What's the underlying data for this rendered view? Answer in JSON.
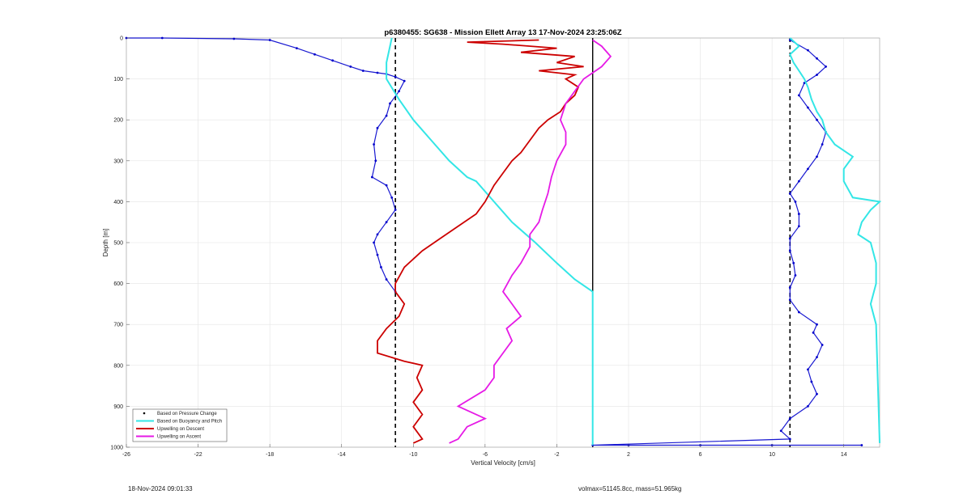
{
  "footer": {
    "timestamp": "18-Nov-2024 09:01:33",
    "mass_info": "volmax=51145.8cc, mass=51.965kg"
  },
  "chart_data": {
    "type": "line",
    "title": "p6380455: SG638 - Mission Ellett Array 13 17-Nov-2024 23:25:06Z",
    "xlabel": "Vertical Velocity [cm/s]",
    "ylabel": "Depth [m]",
    "xlim": [
      -26,
      16
    ],
    "ylim": [
      0,
      1000
    ],
    "y_reversed": true,
    "xticks": [
      -26,
      -22,
      -18,
      -14,
      -10,
      -6,
      -2,
      2,
      6,
      10,
      14
    ],
    "yticks": [
      0,
      100,
      200,
      300,
      400,
      500,
      600,
      700,
      800,
      900,
      1000
    ],
    "grid": true,
    "legend_position": "bottom-left",
    "reference_lines": [
      {
        "x": -11,
        "style": "dashed",
        "color": "#000000"
      },
      {
        "x": 0,
        "style": "solid",
        "color": "#000000"
      },
      {
        "x": 11,
        "style": "dashed",
        "color": "#000000"
      }
    ],
    "series": [
      {
        "name": "Based on Pressure Change",
        "style": "points",
        "color": "#0000cc",
        "descent": [
          [
            -26,
            0
          ],
          [
            -24,
            0
          ],
          [
            -20,
            2
          ],
          [
            -18,
            5
          ],
          [
            -16.5,
            25
          ],
          [
            -15.5,
            40
          ],
          [
            -14.5,
            55
          ],
          [
            -13.5,
            70
          ],
          [
            -12.8,
            80
          ],
          [
            -12,
            85
          ],
          [
            -11.5,
            88
          ],
          [
            -11,
            95
          ],
          [
            -10.5,
            105
          ],
          [
            -10.8,
            130
          ],
          [
            -11.3,
            160
          ],
          [
            -11.5,
            190
          ],
          [
            -12,
            220
          ],
          [
            -12.2,
            260
          ],
          [
            -12.1,
            300
          ],
          [
            -12.3,
            340
          ],
          [
            -11.5,
            360
          ],
          [
            -11.2,
            390
          ],
          [
            -11,
            420
          ],
          [
            -11.5,
            450
          ],
          [
            -12,
            480
          ],
          [
            -12.2,
            500
          ],
          [
            -12,
            530
          ],
          [
            -11.8,
            560
          ],
          [
            -11.5,
            590
          ],
          [
            -11,
            620
          ]
        ],
        "ascent": [
          [
            15,
            995
          ],
          [
            10,
            995
          ],
          [
            6,
            995
          ],
          [
            2,
            995
          ],
          [
            0,
            995
          ],
          [
            11,
            980
          ],
          [
            10.5,
            960
          ],
          [
            11,
            930
          ],
          [
            12,
            900
          ],
          [
            12.5,
            870
          ],
          [
            12.2,
            840
          ],
          [
            12,
            810
          ],
          [
            12.5,
            780
          ],
          [
            12.8,
            750
          ],
          [
            12.3,
            720
          ],
          [
            12.5,
            700
          ],
          [
            11.5,
            670
          ],
          [
            11,
            640
          ],
          [
            11,
            610
          ],
          [
            11.3,
            580
          ],
          [
            11.2,
            550
          ],
          [
            11,
            520
          ],
          [
            11,
            490
          ],
          [
            11.5,
            460
          ],
          [
            11.5,
            430
          ],
          [
            11.3,
            400
          ],
          [
            11,
            380
          ],
          [
            11.5,
            350
          ],
          [
            12,
            320
          ],
          [
            12.5,
            290
          ],
          [
            12.8,
            260
          ],
          [
            13,
            230
          ],
          [
            12.5,
            200
          ],
          [
            12,
            170
          ],
          [
            11.5,
            140
          ],
          [
            11.8,
            110
          ],
          [
            12.5,
            90
          ],
          [
            13,
            70
          ],
          [
            12.5,
            50
          ],
          [
            12,
            30
          ],
          [
            11,
            5
          ]
        ]
      },
      {
        "name": "Based on Buoyancy and Pitch",
        "style": "line",
        "color": "#33e6e6",
        "descent": [
          [
            -11.2,
            0
          ],
          [
            -11.5,
            60
          ],
          [
            -11.5,
            100
          ],
          [
            -10.8,
            150
          ],
          [
            -10,
            200
          ],
          [
            -9,
            250
          ],
          [
            -8,
            300
          ],
          [
            -7,
            340
          ],
          [
            -6.5,
            350
          ],
          [
            -5.5,
            400
          ],
          [
            -4.5,
            450
          ],
          [
            -3.2,
            500
          ],
          [
            -2,
            550
          ],
          [
            -1,
            590
          ],
          [
            0,
            620
          ],
          [
            0,
            900
          ],
          [
            0,
            995
          ]
        ],
        "ascent": [
          [
            16,
            990
          ],
          [
            15.8,
            700
          ],
          [
            15.5,
            650
          ],
          [
            15.8,
            600
          ],
          [
            15.8,
            550
          ],
          [
            15.5,
            500
          ],
          [
            14.8,
            480
          ],
          [
            15,
            450
          ],
          [
            15.5,
            420
          ],
          [
            16,
            400
          ],
          [
            14.5,
            390
          ],
          [
            14,
            350
          ],
          [
            14,
            320
          ],
          [
            14.5,
            290
          ],
          [
            13.5,
            260
          ],
          [
            13,
            230
          ],
          [
            12.8,
            200
          ],
          [
            12.5,
            180
          ],
          [
            12.2,
            150
          ],
          [
            12,
            120
          ],
          [
            11.8,
            100
          ],
          [
            11.5,
            80
          ],
          [
            11.2,
            60
          ],
          [
            11,
            40
          ],
          [
            11.5,
            20
          ],
          [
            11,
            0
          ]
        ]
      },
      {
        "name": "Upwelling on Descent",
        "style": "line",
        "color": "#cc0000",
        "values": [
          [
            -3,
            5
          ],
          [
            -7,
            10
          ],
          [
            -5,
            15
          ],
          [
            -2,
            25
          ],
          [
            -4,
            35
          ],
          [
            -1,
            45
          ],
          [
            -2,
            60
          ],
          [
            -0.5,
            70
          ],
          [
            -3,
            80
          ],
          [
            -1,
            90
          ],
          [
            -1.5,
            100
          ],
          [
            -0.8,
            120
          ],
          [
            -1,
            140
          ],
          [
            -1.5,
            160
          ],
          [
            -1.8,
            180
          ],
          [
            -2.5,
            200
          ],
          [
            -3,
            220
          ],
          [
            -3.5,
            250
          ],
          [
            -4,
            280
          ],
          [
            -4.5,
            300
          ],
          [
            -5,
            330
          ],
          [
            -5.5,
            360
          ],
          [
            -6,
            400
          ],
          [
            -6.5,
            430
          ],
          [
            -7.5,
            460
          ],
          [
            -8.5,
            490
          ],
          [
            -9.5,
            520
          ],
          [
            -10.5,
            560
          ],
          [
            -11,
            600
          ],
          [
            -11,
            620
          ],
          [
            -10.5,
            650
          ],
          [
            -10.8,
            680
          ],
          [
            -11.5,
            710
          ],
          [
            -12,
            740
          ],
          [
            -12,
            770
          ],
          [
            -10.5,
            790
          ],
          [
            -9.5,
            800
          ],
          [
            -9.8,
            830
          ],
          [
            -9.5,
            860
          ],
          [
            -10,
            890
          ],
          [
            -9.5,
            920
          ],
          [
            -10,
            950
          ],
          [
            -9.5,
            980
          ],
          [
            -10,
            990
          ]
        ]
      },
      {
        "name": "Upwelling on Ascent",
        "style": "line",
        "color": "#e61ae6",
        "values": [
          [
            -8,
            990
          ],
          [
            -7.5,
            980
          ],
          [
            -7,
            950
          ],
          [
            -6,
            930
          ],
          [
            -7.5,
            900
          ],
          [
            -6,
            860
          ],
          [
            -5.5,
            830
          ],
          [
            -5.5,
            800
          ],
          [
            -5,
            770
          ],
          [
            -4.5,
            740
          ],
          [
            -4.8,
            710
          ],
          [
            -4,
            680
          ],
          [
            -4.5,
            650
          ],
          [
            -5,
            620
          ],
          [
            -4.5,
            580
          ],
          [
            -4,
            550
          ],
          [
            -3.5,
            510
          ],
          [
            -3.5,
            480
          ],
          [
            -3,
            450
          ],
          [
            -2.8,
            420
          ],
          [
            -2.5,
            380
          ],
          [
            -2.3,
            340
          ],
          [
            -2,
            300
          ],
          [
            -1.5,
            260
          ],
          [
            -1.5,
            230
          ],
          [
            -1.8,
            200
          ],
          [
            -1.5,
            160
          ],
          [
            -1,
            130
          ],
          [
            -0.5,
            100
          ],
          [
            0.5,
            70
          ],
          [
            1,
            45
          ],
          [
            0.5,
            20
          ],
          [
            0,
            5
          ]
        ]
      }
    ]
  }
}
